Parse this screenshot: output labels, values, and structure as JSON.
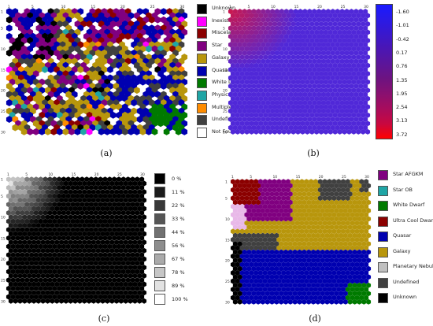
{
  "captions": [
    "(a)",
    "(b)",
    "(c)",
    "(d)"
  ],
  "tick_labels": [
    "1",
    "5",
    "10",
    "15",
    "20",
    "25",
    "30"
  ],
  "legend_a": {
    "items": [
      {
        "label": "Unknown",
        "color": "#000000"
      },
      {
        "label": "Inexistent",
        "color": "#ff00ff"
      },
      {
        "label": "Miscelaneous",
        "color": "#8b0000"
      },
      {
        "label": "Star",
        "color": "#800080"
      },
      {
        "label": "Galaxy",
        "color": "#b8960c"
      },
      {
        "label": "Quasar",
        "color": "#0000b0"
      },
      {
        "label": "White Dwarf",
        "color": "#007a00"
      },
      {
        "label": "Physical Binary",
        "color": "#1fa5a5"
      },
      {
        "label": "Multiple Object",
        "color": "#ff8c00"
      },
      {
        "label": "Undefined",
        "color": "#404040"
      },
      {
        "label": "Not Found",
        "color": "#ffffff"
      }
    ]
  },
  "colorbar_b": {
    "labels": [
      "-1.60",
      "-1.01",
      "-0.42",
      "0.17",
      "0.76",
      "1.35",
      "1.95",
      "2.54",
      "3.13",
      "3.72"
    ],
    "colors": [
      "#1a1aff",
      "#2a1ae6",
      "#3a18cc",
      "#4b16b3",
      "#5c159a",
      "#6e1380",
      "#8a1070",
      "#a80c5c",
      "#c80840",
      "#ff0000"
    ]
  },
  "graybar_c": {
    "labels": [
      "0 %",
      "11 %",
      "22 %",
      "33 %",
      "44 %",
      "56 %",
      "67 %",
      "78 %",
      "89 %",
      "100 %"
    ],
    "colors": [
      "#000000",
      "#1c1c1c",
      "#383838",
      "#555555",
      "#717171",
      "#8d8d8d",
      "#aaaaaa",
      "#c6c6c6",
      "#e2e2e2",
      "#ffffff"
    ]
  },
  "legend_d": {
    "items": [
      {
        "label": "Star AFGKM",
        "color": "#800080"
      },
      {
        "label": "Star OB",
        "color": "#1fa5a5"
      },
      {
        "label": "White Dwarf",
        "color": "#007a00"
      },
      {
        "label": "Ultra Cool Dwarf",
        "color": "#8b0000"
      },
      {
        "label": "Quasar",
        "color": "#0000b0"
      },
      {
        "label": "Galaxy",
        "color": "#b8960c"
      },
      {
        "label": "Planetary Nebula",
        "color": "#c0c0c0"
      },
      {
        "label": "Undefined",
        "color": "#404040"
      },
      {
        "label": "Unknown",
        "color": "#000000"
      }
    ]
  }
}
